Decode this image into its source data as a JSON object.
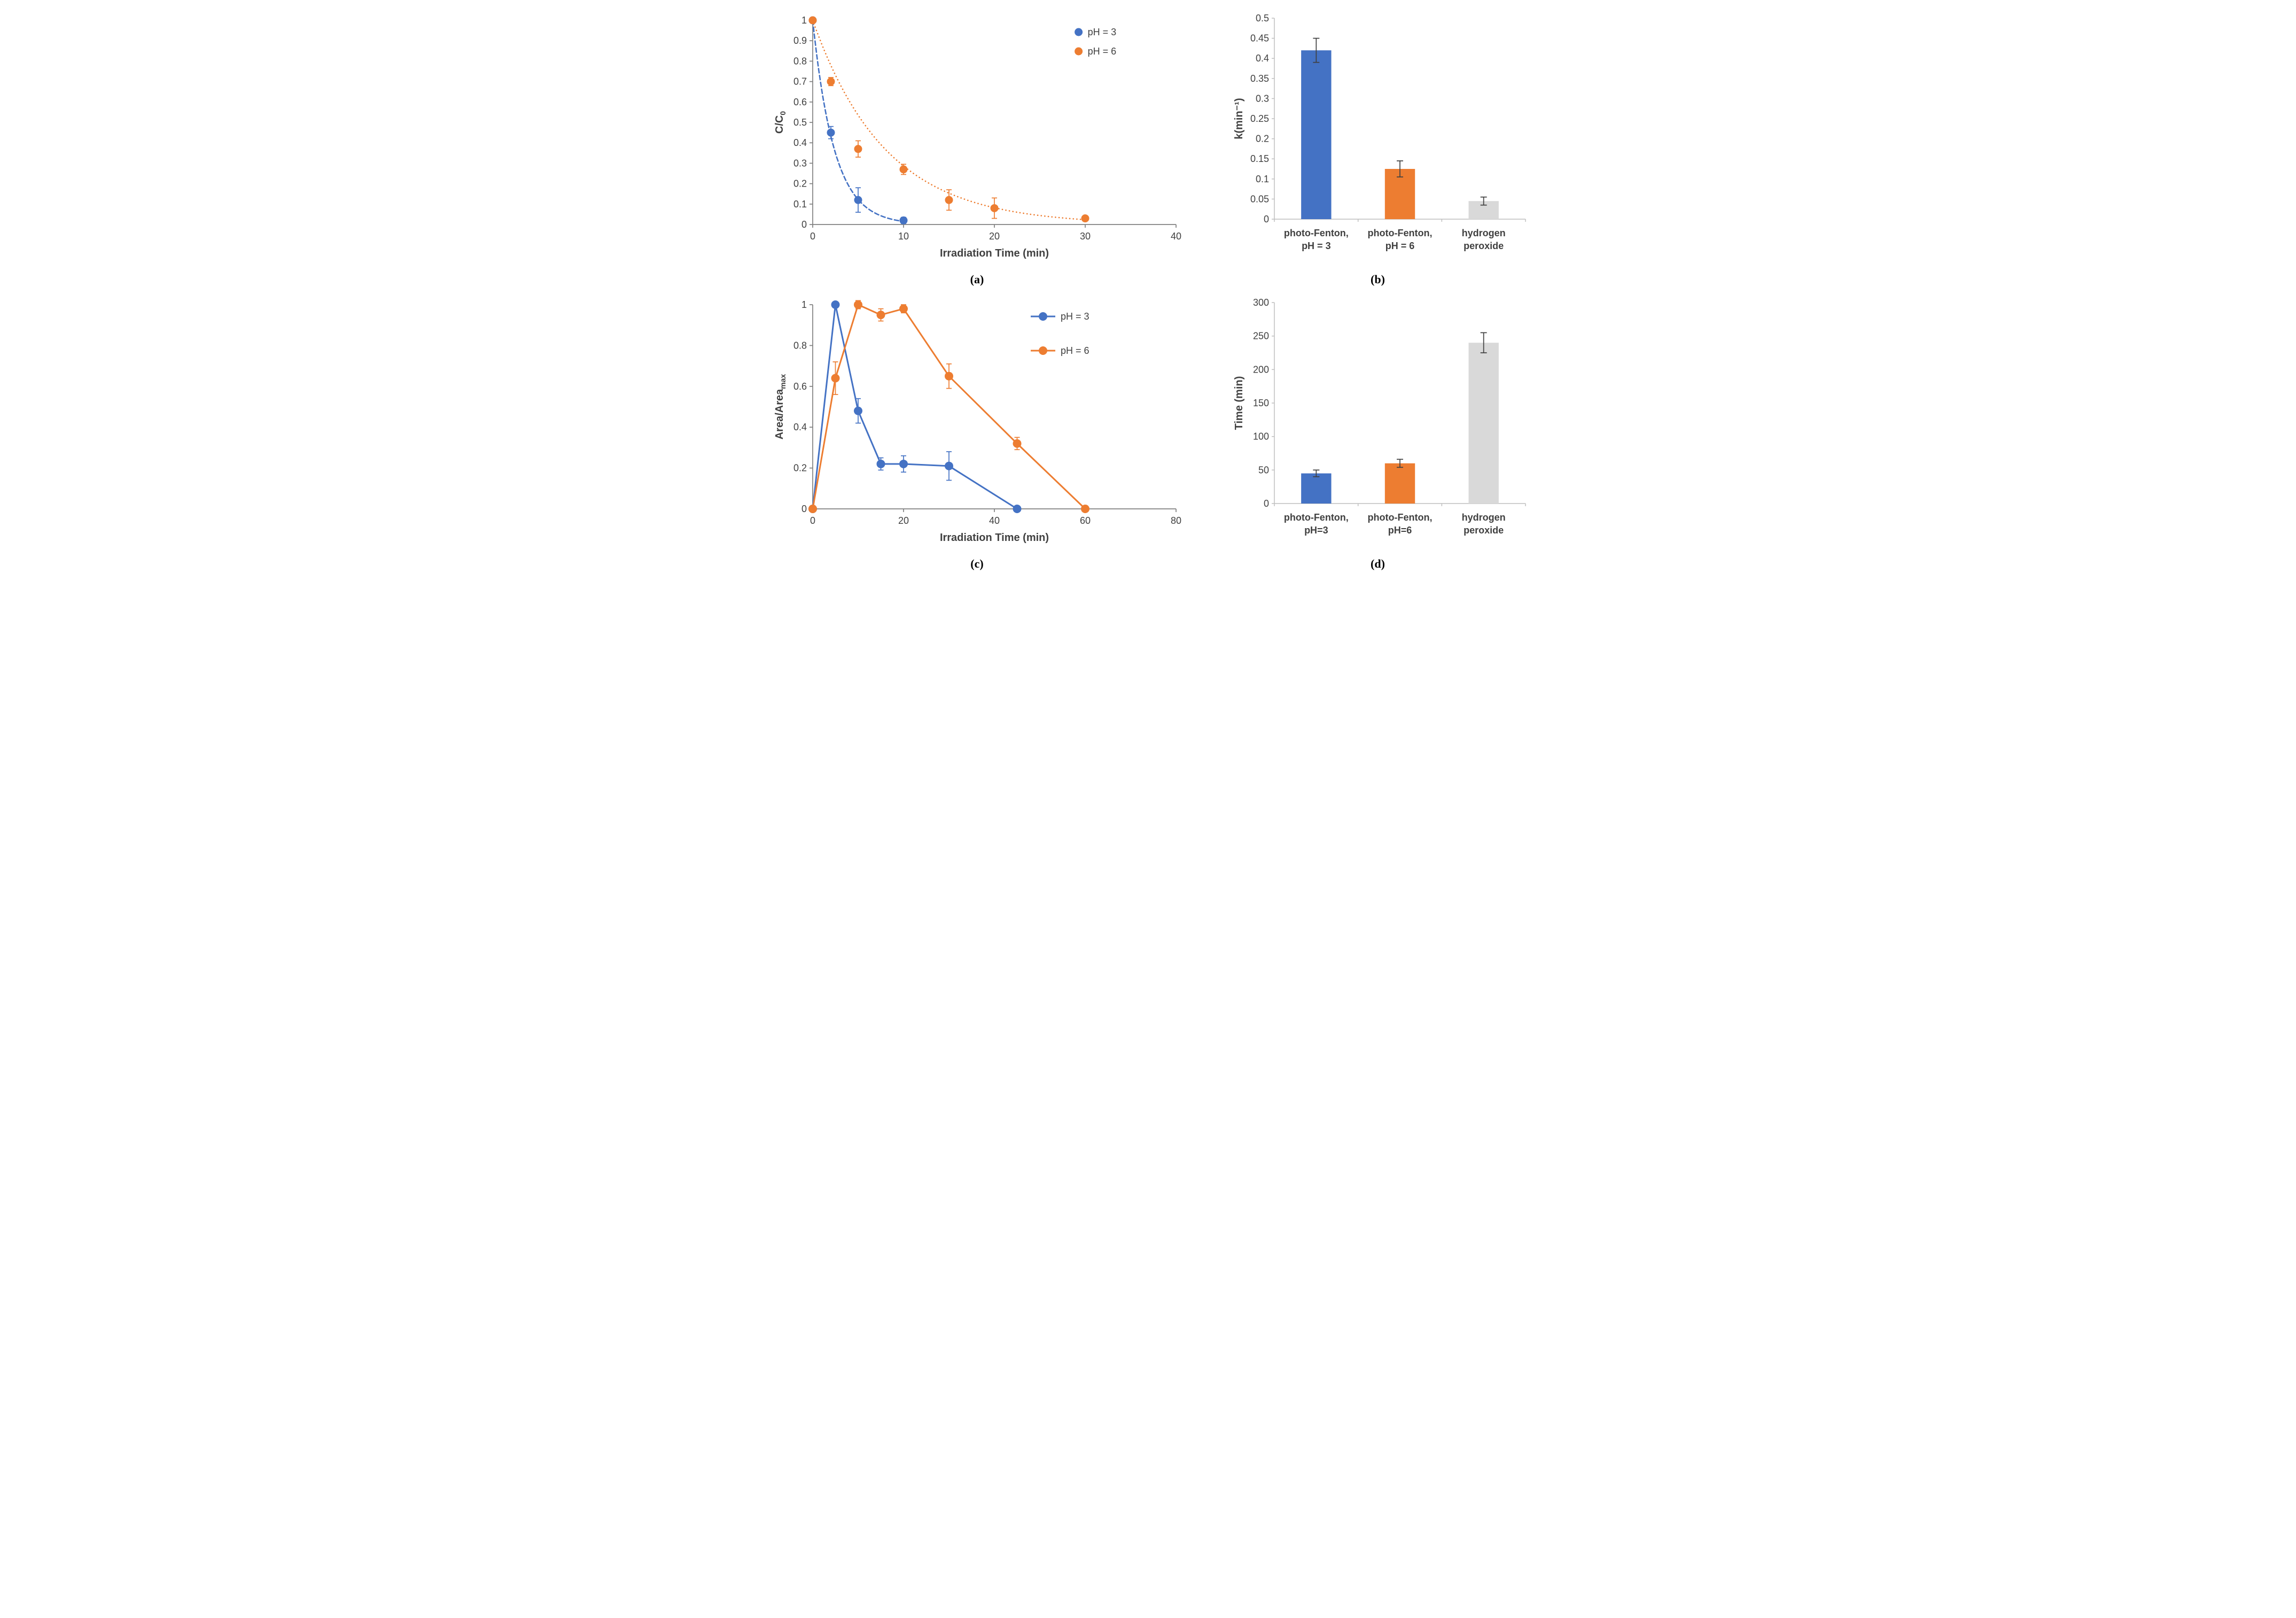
{
  "figure": {
    "captions": {
      "a": "(a)",
      "b": "(b)",
      "c": "(c)",
      "d": "(d)"
    }
  },
  "colors": {
    "blue": "#4472C4",
    "orange": "#ED7D31",
    "gray": "#D9D9D9",
    "error": "#404040",
    "axis_dark": "#808080",
    "axis_light": "#BFBFBF",
    "text": "#404040"
  },
  "chart_data": [
    {
      "id": "a",
      "type": "scatter",
      "xlabel": "Irradiation Time (min)",
      "ylabel": "C/C",
      "ylabel_sub": "0",
      "xlim": [
        0,
        40
      ],
      "ylim": [
        0,
        1
      ],
      "xticks": [
        0,
        10,
        20,
        30,
        40
      ],
      "yticks": [
        0,
        0.1,
        0.2,
        0.3,
        0.4,
        0.5,
        0.6,
        0.7,
        0.8,
        0.9,
        1
      ],
      "legend": [
        {
          "label": "pH = 3",
          "color": "blue"
        },
        {
          "label": "pH = 6",
          "color": "orange"
        }
      ],
      "legend_x": 0.72,
      "legend_dy": 36,
      "series": [
        {
          "name": "pH = 3",
          "color": "blue",
          "fit_k": 0.42,
          "fit_dash": "8 5",
          "x": [
            0,
            2,
            5,
            10
          ],
          "y": [
            1,
            0.45,
            0.12,
            0.02
          ],
          "yerr": [
            0,
            0.03,
            0.06,
            0.015
          ]
        },
        {
          "name": "pH = 6",
          "color": "orange",
          "fit_k": 0.125,
          "fit_dash": "0.2 6.5",
          "x": [
            0,
            2,
            5,
            10,
            15,
            20,
            30
          ],
          "y": [
            1,
            0.7,
            0.37,
            0.27,
            0.12,
            0.08,
            0.03
          ],
          "yerr": [
            0,
            0.02,
            0.04,
            0.025,
            0.05,
            0.05,
            0.012
          ]
        }
      ]
    },
    {
      "id": "b",
      "type": "bar",
      "ylabel": "k(min⁻¹)",
      "ylim": [
        0,
        0.5
      ],
      "yticks": [
        0,
        0.05,
        0.1,
        0.15,
        0.2,
        0.25,
        0.3,
        0.35,
        0.4,
        0.45,
        0.5
      ],
      "categories": [
        [
          "photo-Fenton,",
          "pH = 3"
        ],
        [
          "photo-Fenton,",
          "pH = 6"
        ],
        [
          "hydrogen",
          "peroxide"
        ]
      ],
      "values": [
        0.42,
        0.125,
        0.045
      ],
      "errors": [
        0.03,
        0.02,
        0.01
      ],
      "colors": [
        "blue",
        "orange",
        "gray"
      ]
    },
    {
      "id": "c",
      "type": "line",
      "xlabel": "Irradiation Time (min)",
      "ylabel": "Area/Area",
      "ylabel_sub": "max",
      "xlim": [
        0,
        80
      ],
      "ylim": [
        0,
        1
      ],
      "xticks": [
        0,
        20,
        40,
        60,
        80
      ],
      "yticks": [
        0,
        0.2,
        0.4,
        0.6,
        0.8,
        1
      ],
      "legend": [
        {
          "label": "pH = 3",
          "color": "blue"
        },
        {
          "label": "pH = 6",
          "color": "orange"
        }
      ],
      "legend_x": 0.6,
      "legend_dy": 64,
      "series": [
        {
          "name": "pH = 3",
          "color": "blue",
          "x": [
            0,
            5,
            10,
            15,
            20,
            30,
            45
          ],
          "y": [
            0,
            1,
            0.48,
            0.22,
            0.22,
            0.21,
            0
          ],
          "yerr": [
            0,
            0,
            0.06,
            0.03,
            0.04,
            0.07,
            0.012
          ]
        },
        {
          "name": "pH = 6",
          "color": "orange",
          "x": [
            0,
            5,
            10,
            15,
            20,
            30,
            45,
            60
          ],
          "y": [
            0,
            0.64,
            1,
            0.95,
            0.98,
            0.65,
            0.32,
            0
          ],
          "yerr": [
            0,
            0.08,
            0.02,
            0.03,
            0.02,
            0.06,
            0.03,
            0
          ]
        }
      ]
    },
    {
      "id": "d",
      "type": "bar",
      "ylabel": "Time (min)",
      "ylim": [
        0,
        300
      ],
      "yticks": [
        0,
        50,
        100,
        150,
        200,
        250,
        300
      ],
      "categories": [
        [
          "photo-Fenton,",
          "pH=3"
        ],
        [
          "photo-Fenton,",
          "pH=6"
        ],
        [
          "hydrogen",
          "peroxide"
        ]
      ],
      "values": [
        45,
        60,
        240
      ],
      "errors": [
        5,
        6,
        15
      ],
      "colors": [
        "blue",
        "orange",
        "gray"
      ]
    }
  ]
}
